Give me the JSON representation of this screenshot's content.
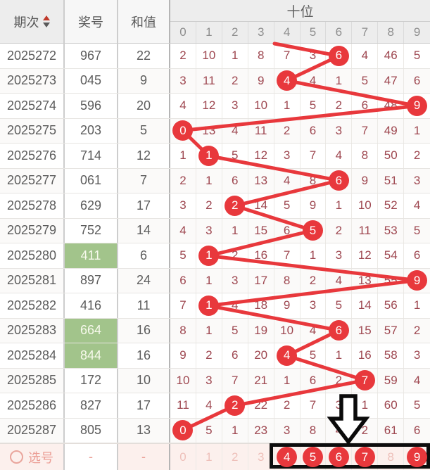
{
  "header": {
    "period_label": "期次",
    "number_label": "奖号",
    "sum_label": "和值",
    "section_label": "十位",
    "digit_columns": [
      "0",
      "1",
      "2",
      "3",
      "4",
      "5",
      "6",
      "7",
      "8",
      "9"
    ]
  },
  "colors": {
    "accent-red": "#e8383c",
    "grid-number": "#9e4750",
    "green-highlight": "#a2c48b",
    "header-bg": "#ededed",
    "selection-bg": "#fcf0ed",
    "selection-faded": "#eec0ba"
  },
  "rows": [
    {
      "period": "2025272",
      "number": "967",
      "sum": "22",
      "green": false,
      "hit": 6,
      "cells": [
        "2",
        "10",
        "1",
        "8",
        "7",
        "3",
        "6",
        "4",
        "46",
        "5"
      ]
    },
    {
      "period": "2025273",
      "number": "045",
      "sum": "9",
      "green": false,
      "hit": 4,
      "cells": [
        "3",
        "11",
        "2",
        "9",
        "4",
        "4",
        "1",
        "5",
        "47",
        "6"
      ]
    },
    {
      "period": "2025274",
      "number": "596",
      "sum": "20",
      "green": false,
      "hit": 9,
      "cells": [
        "4",
        "12",
        "3",
        "10",
        "1",
        "5",
        "2",
        "6",
        "48",
        "9"
      ]
    },
    {
      "period": "2025275",
      "number": "203",
      "sum": "5",
      "green": false,
      "hit": 0,
      "cells": [
        "0",
        "13",
        "4",
        "11",
        "2",
        "6",
        "3",
        "7",
        "49",
        "1"
      ]
    },
    {
      "period": "2025276",
      "number": "714",
      "sum": "12",
      "green": false,
      "hit": 1,
      "cells": [
        "1",
        "1",
        "5",
        "12",
        "3",
        "7",
        "4",
        "8",
        "50",
        "2"
      ]
    },
    {
      "period": "2025277",
      "number": "061",
      "sum": "7",
      "green": false,
      "hit": 6,
      "cells": [
        "2",
        "1",
        "6",
        "13",
        "4",
        "8",
        "6",
        "9",
        "51",
        "3"
      ]
    },
    {
      "period": "2025278",
      "number": "629",
      "sum": "17",
      "green": false,
      "hit": 2,
      "cells": [
        "3",
        "2",
        "2",
        "14",
        "5",
        "9",
        "1",
        "10",
        "52",
        "4"
      ]
    },
    {
      "period": "2025279",
      "number": "752",
      "sum": "14",
      "green": false,
      "hit": 5,
      "cells": [
        "4",
        "3",
        "1",
        "15",
        "6",
        "5",
        "2",
        "11",
        "53",
        "5"
      ]
    },
    {
      "period": "2025280",
      "number": "411",
      "sum": "6",
      "green": true,
      "hit": 1,
      "cells": [
        "5",
        "1",
        "2",
        "16",
        "7",
        "1",
        "3",
        "12",
        "54",
        "6"
      ]
    },
    {
      "period": "2025281",
      "number": "897",
      "sum": "24",
      "green": false,
      "hit": 9,
      "cells": [
        "6",
        "1",
        "3",
        "17",
        "8",
        "2",
        "4",
        "13",
        "55",
        "9"
      ]
    },
    {
      "period": "2025282",
      "number": "416",
      "sum": "11",
      "green": false,
      "hit": 1,
      "cells": [
        "7",
        "1",
        "4",
        "18",
        "9",
        "3",
        "5",
        "14",
        "56",
        "1"
      ]
    },
    {
      "period": "2025283",
      "number": "664",
      "sum": "16",
      "green": true,
      "hit": 6,
      "cells": [
        "8",
        "1",
        "5",
        "19",
        "10",
        "4",
        "6",
        "15",
        "57",
        "2"
      ]
    },
    {
      "period": "2025284",
      "number": "844",
      "sum": "16",
      "green": true,
      "hit": 4,
      "cells": [
        "9",
        "2",
        "6",
        "20",
        "4",
        "5",
        "1",
        "16",
        "58",
        "3"
      ]
    },
    {
      "period": "2025285",
      "number": "172",
      "sum": "10",
      "green": false,
      "hit": 7,
      "cells": [
        "10",
        "3",
        "7",
        "21",
        "1",
        "6",
        "2",
        "7",
        "59",
        "4"
      ]
    },
    {
      "period": "2025286",
      "number": "827",
      "sum": "17",
      "green": false,
      "hit": 2,
      "cells": [
        "11",
        "4",
        "2",
        "22",
        "2",
        "7",
        "3",
        "1",
        "60",
        "5"
      ]
    },
    {
      "period": "2025287",
      "number": "805",
      "sum": "13",
      "green": false,
      "hit": 0,
      "cells": [
        "0",
        "5",
        "1",
        "23",
        "3",
        "8",
        "4",
        "2",
        "61",
        "6"
      ]
    }
  ],
  "selection": {
    "label": "选号",
    "number_placeholder": "-",
    "sum_placeholder": "-",
    "cells": [
      "0",
      "1",
      "2",
      "3",
      "4",
      "5",
      "6",
      "7",
      "8",
      "9"
    ],
    "picked": [
      4,
      5,
      6,
      7,
      9
    ]
  }
}
